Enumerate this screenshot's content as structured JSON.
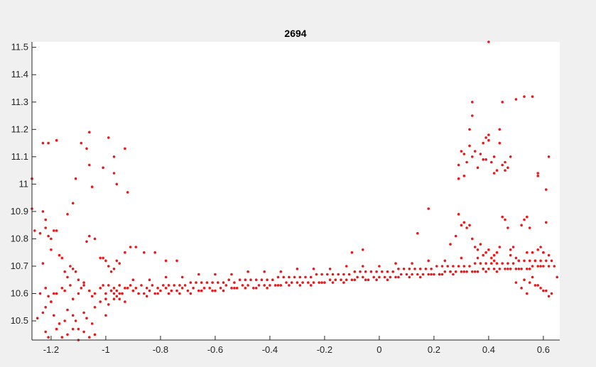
{
  "chart_data": {
    "type": "scatter",
    "title": "2694",
    "xlabel": "",
    "ylabel": "",
    "xlim": [
      -1.27,
      0.66
    ],
    "ylim": [
      10.43,
      11.52
    ],
    "grid": false,
    "legend": false,
    "marker_color": "#e8191b",
    "x_ticks": [
      {
        "value": -1.2,
        "label": "-1.2"
      },
      {
        "value": -1,
        "label": "-1"
      },
      {
        "value": -0.8,
        "label": "-0.8"
      },
      {
        "value": -0.6,
        "label": "-0.6"
      },
      {
        "value": -0.4,
        "label": "-0.4"
      },
      {
        "value": -0.2,
        "label": "-0.2"
      },
      {
        "value": 0,
        "label": "0"
      },
      {
        "value": 0.2,
        "label": "0.2"
      },
      {
        "value": 0.4,
        "label": "0.4"
      },
      {
        "value": 0.6,
        "label": "0.6"
      }
    ],
    "y_ticks": [
      {
        "value": 10.5,
        "label": "10.5"
      },
      {
        "value": 10.6,
        "label": "10.6"
      },
      {
        "value": 10.7,
        "label": "10.7"
      },
      {
        "value": 10.8,
        "label": "10.8"
      },
      {
        "value": 10.9,
        "label": "10.9"
      },
      {
        "value": 11,
        "label": "11"
      },
      {
        "value": 11.1,
        "label": "11.1"
      },
      {
        "value": 11.2,
        "label": "11.2"
      },
      {
        "value": 11.3,
        "label": "11.3"
      },
      {
        "value": 11.4,
        "label": "11.4"
      },
      {
        "value": 11.5,
        "label": "11.5"
      }
    ],
    "series": [
      {
        "x": [
          -1.27,
          -1.27,
          -1.23,
          -1.23,
          -1.22,
          -1.21,
          -1.19,
          -1.18,
          -1.14,
          -1.12,
          -1.11,
          -1.09,
          -1.07,
          -1.06,
          -1.06,
          -1.05,
          -1.01,
          -0.99,
          -0.97,
          -0.97,
          -0.96,
          -0.93,
          -0.92,
          -1.26,
          -1.24,
          -1.23,
          -1.22,
          -1.21,
          -1.2,
          -1.2,
          -1.18,
          -1.17,
          -1.16,
          -1.15,
          -1.14,
          -1.13,
          -1.12,
          -1.11,
          -1.1,
          -1.08,
          -1.07,
          -1.06,
          -1.04,
          -1.02,
          -1.01,
          -1.0,
          -0.99,
          -0.98,
          -0.97,
          -0.96,
          -0.95,
          -0.93,
          -0.91,
          -0.89,
          -0.86,
          -0.82,
          -0.78,
          -0.74,
          -1.24,
          -1.22,
          -1.21,
          -1.2,
          -1.19,
          -1.18,
          -1.16,
          -1.15,
          -1.13,
          -1.12,
          -1.1,
          -1.09,
          -1.08,
          -1.06,
          -1.05,
          -1.04,
          -1.02,
          -1.01,
          -1.0,
          -0.98,
          -0.97,
          -0.96,
          -0.95,
          -0.94,
          -1.25,
          -1.23,
          -1.22,
          -1.2,
          -1.19,
          -1.17,
          -1.15,
          -1.14,
          -1.12,
          -1.11,
          -1.1,
          -1.08,
          -1.07,
          -1.05,
          -1.04,
          -1.02,
          -1.0,
          -0.99,
          -0.97,
          -0.95,
          -0.93,
          -1.22,
          -1.21,
          -1.18,
          -1.16,
          -1.14,
          -1.12,
          -1.1,
          -1.08,
          -1.06,
          -1.04,
          -1.0,
          -0.98,
          -0.96,
          -0.94,
          -0.92,
          -0.9,
          -0.88,
          -0.86,
          -0.84,
          -0.82,
          -0.8,
          -0.78,
          -0.76,
          -0.74,
          -0.72,
          -0.7,
          -0.68,
          -0.66,
          -0.64,
          -0.62,
          -0.6,
          -0.58,
          -0.56,
          -0.54,
          -0.52,
          -0.5,
          -0.48,
          -0.46,
          -0.44,
          -0.42,
          -0.4,
          -0.38,
          -0.36,
          -0.34,
          -0.32,
          -0.3,
          -0.28,
          -0.26,
          -0.24,
          -0.22,
          -0.2,
          -0.18,
          -0.16,
          -0.14,
          -0.12,
          -0.1,
          -0.08,
          -0.06,
          -0.04,
          -0.02,
          0.0,
          0.02,
          0.04,
          0.06,
          0.08,
          0.1,
          0.12,
          0.14,
          0.16,
          0.18,
          0.2,
          0.22,
          0.24,
          0.26,
          0.28,
          0.3,
          0.32,
          0.34,
          0.36,
          0.38,
          0.4,
          0.42,
          0.44,
          0.46,
          0.48,
          0.5,
          0.52,
          0.54,
          0.56,
          0.58,
          0.6,
          0.62,
          0.64,
          -0.99,
          -0.97,
          -0.95,
          -0.93,
          -0.91,
          -0.89,
          -0.87,
          -0.85,
          -0.83,
          -0.81,
          -0.79,
          -0.77,
          -0.75,
          -0.73,
          -0.71,
          -0.69,
          -0.67,
          -0.65,
          -0.63,
          -0.61,
          -0.59,
          -0.57,
          -0.55,
          -0.53,
          -0.51,
          -0.49,
          -0.47,
          -0.45,
          -0.43,
          -0.41,
          -0.39,
          -0.37,
          -0.35,
          -0.33,
          -0.31,
          -0.29,
          -0.27,
          -0.25,
          -0.23,
          -0.21,
          -0.19,
          -0.17,
          -0.15,
          -0.13,
          -0.11,
          -0.09,
          -0.07,
          -0.05,
          -0.03,
          -0.01,
          0.01,
          0.03,
          0.05,
          0.07,
          0.09,
          0.11,
          0.13,
          0.15,
          0.17,
          0.19,
          0.21,
          0.23,
          0.25,
          0.27,
          0.29,
          0.31,
          0.33,
          0.35,
          0.37,
          0.39,
          0.41,
          0.43,
          0.45,
          0.47,
          0.49,
          0.51,
          0.53,
          0.55,
          0.57,
          0.59,
          0.61,
          0.63,
          -0.85,
          -0.81,
          -0.77,
          -0.73,
          -0.69,
          -0.65,
          -0.61,
          -0.57,
          -0.53,
          -0.49,
          -0.45,
          -0.41,
          -0.37,
          -0.33,
          -0.29,
          -0.25,
          -0.21,
          -0.17,
          -0.13,
          -0.09,
          -0.05,
          -0.01,
          0.03,
          0.07,
          0.11,
          0.15,
          0.19,
          0.23,
          0.27,
          0.31,
          0.35,
          0.39,
          0.43,
          0.47,
          0.51,
          0.55,
          0.59,
          -0.9,
          -0.84,
          -0.78,
          -0.72,
          -0.66,
          -0.6,
          -0.54,
          -0.48,
          -0.42,
          -0.36,
          -0.3,
          -0.24,
          -0.18,
          -0.12,
          -0.06,
          0.0,
          0.06,
          0.12,
          0.18,
          0.24,
          0.3,
          0.36,
          0.42,
          0.48,
          0.54,
          0.6,
          -0.06,
          -0.1,
          0.14,
          0.18,
          0.26,
          0.28,
          0.29,
          0.3,
          0.31,
          0.32,
          0.33,
          0.34,
          0.35,
          0.36,
          0.37,
          0.38,
          0.39,
          0.4,
          0.41,
          0.42,
          0.43,
          0.44,
          0.45,
          0.46,
          0.47,
          0.48,
          0.49,
          0.5,
          0.51,
          0.52,
          0.53,
          0.54,
          0.55,
          0.56,
          0.57,
          0.58,
          0.59,
          0.6,
          0.61,
          0.62,
          0.29,
          0.3,
          0.31,
          0.32,
          0.33,
          0.34,
          0.35,
          0.36,
          0.37,
          0.38,
          0.39,
          0.4,
          0.41,
          0.42,
          0.43,
          0.44,
          0.45,
          0.46,
          0.47,
          0.48,
          0.29,
          0.31,
          0.33,
          0.34,
          0.34,
          0.38,
          0.39,
          0.4,
          0.42,
          0.44,
          0.45,
          0.46,
          0.5,
          0.53,
          0.56,
          0.58,
          0.58,
          0.61,
          0.62,
          0.5,
          0.52,
          0.54,
          0.56,
          0.58,
          0.6,
          0.62,
          0.53,
          0.55,
          0.57,
          0.59,
          0.61,
          0.63,
          0.65,
          0.4,
          0.22,
          0.26,
          0.38
        ],
        "y": [
          11.02,
          10.91,
          11.15,
          10.9,
          10.87,
          11.15,
          10.83,
          11.16,
          10.89,
          10.93,
          11.02,
          11.15,
          11.13,
          11.19,
          11.07,
          10.99,
          11.06,
          11.17,
          11.1,
          11.04,
          11.0,
          11.13,
          10.97,
          10.83,
          10.82,
          10.71,
          10.84,
          10.81,
          10.8,
          10.76,
          10.83,
          10.74,
          10.73,
          10.68,
          10.66,
          10.7,
          10.69,
          10.68,
          10.65,
          10.64,
          10.79,
          10.81,
          10.8,
          10.73,
          10.73,
          10.72,
          10.7,
          10.68,
          10.69,
          10.72,
          10.71,
          10.75,
          10.77,
          10.77,
          10.75,
          10.75,
          10.72,
          10.72,
          10.6,
          10.62,
          10.59,
          10.57,
          10.6,
          10.6,
          10.62,
          10.61,
          10.63,
          10.58,
          10.6,
          10.62,
          10.63,
          10.61,
          10.59,
          10.6,
          10.62,
          10.63,
          10.58,
          10.61,
          10.6,
          10.59,
          10.58,
          10.6,
          10.51,
          10.53,
          10.55,
          10.57,
          10.52,
          10.49,
          10.5,
          10.54,
          10.52,
          10.5,
          10.47,
          10.53,
          10.51,
          10.49,
          10.55,
          10.57,
          10.52,
          10.56,
          10.58,
          10.6,
          10.57,
          10.46,
          10.44,
          10.47,
          10.44,
          10.45,
          10.47,
          10.43,
          10.46,
          10.44,
          10.45,
          10.6,
          10.61,
          10.61,
          10.6,
          10.62,
          10.61,
          10.6,
          10.6,
          10.61,
          10.6,
          10.61,
          10.62,
          10.61,
          10.61,
          10.62,
          10.61,
          10.62,
          10.61,
          10.62,
          10.62,
          10.61,
          10.62,
          10.63,
          10.62,
          10.62,
          10.63,
          10.63,
          10.62,
          10.63,
          10.63,
          10.63,
          10.63,
          10.63,
          10.64,
          10.64,
          10.64,
          10.64,
          10.64,
          10.64,
          10.64,
          10.64,
          10.65,
          10.65,
          10.65,
          10.65,
          10.65,
          10.66,
          10.66,
          10.65,
          10.66,
          10.66,
          10.66,
          10.66,
          10.66,
          10.67,
          10.67,
          10.67,
          10.67,
          10.67,
          10.67,
          10.67,
          10.67,
          10.68,
          10.68,
          10.68,
          10.68,
          10.68,
          10.68,
          10.68,
          10.69,
          10.69,
          10.69,
          10.69,
          10.69,
          10.69,
          10.69,
          10.69,
          10.69,
          10.7,
          10.7,
          10.7,
          10.7,
          10.7,
          10.63,
          10.62,
          10.63,
          10.62,
          10.63,
          10.62,
          10.63,
          10.62,
          10.63,
          10.62,
          10.63,
          10.63,
          10.63,
          10.63,
          10.63,
          10.64,
          10.64,
          10.64,
          10.64,
          10.64,
          10.64,
          10.64,
          10.65,
          10.64,
          10.65,
          10.65,
          10.65,
          10.65,
          10.65,
          10.65,
          10.65,
          10.66,
          10.66,
          10.66,
          10.66,
          10.66,
          10.66,
          10.66,
          10.67,
          10.67,
          10.67,
          10.67,
          10.67,
          10.67,
          10.67,
          10.68,
          10.68,
          10.68,
          10.68,
          10.68,
          10.68,
          10.68,
          10.68,
          10.69,
          10.69,
          10.69,
          10.69,
          10.69,
          10.69,
          10.69,
          10.7,
          10.7,
          10.7,
          10.7,
          10.7,
          10.7,
          10.7,
          10.71,
          10.71,
          10.71,
          10.71,
          10.71,
          10.71,
          10.71,
          10.71,
          10.72,
          10.72,
          10.72,
          10.72,
          10.72,
          10.72,
          10.72,
          10.59,
          10.6,
          10.6,
          10.6,
          10.6,
          10.61,
          10.61,
          10.61,
          10.62,
          10.62,
          10.62,
          10.62,
          10.63,
          10.63,
          10.63,
          10.63,
          10.64,
          10.64,
          10.64,
          10.65,
          10.65,
          10.65,
          10.65,
          10.66,
          10.66,
          10.66,
          10.67,
          10.67,
          10.67,
          10.68,
          10.68,
          10.68,
          10.68,
          10.69,
          10.69,
          10.69,
          10.7,
          10.65,
          10.65,
          10.66,
          10.66,
          10.67,
          10.67,
          10.67,
          10.68,
          10.68,
          10.68,
          10.69,
          10.69,
          10.69,
          10.7,
          10.7,
          10.7,
          10.71,
          10.71,
          10.72,
          10.72,
          10.73,
          10.73,
          10.74,
          10.74,
          10.75,
          10.75,
          10.76,
          10.75,
          10.82,
          10.91,
          10.78,
          10.81,
          10.89,
          10.85,
          10.86,
          10.84,
          10.85,
          10.8,
          10.77,
          10.76,
          10.78,
          10.74,
          10.75,
          10.76,
          10.73,
          10.72,
          10.75,
          10.77,
          10.88,
          10.87,
          10.84,
          10.76,
          10.77,
          10.73,
          10.72,
          10.85,
          10.87,
          10.88,
          10.84,
          10.75,
          10.72,
          10.76,
          10.77,
          10.75,
          10.86,
          10.74,
          11.07,
          11.12,
          11.11,
          11.08,
          11.14,
          11.1,
          11.12,
          11.06,
          11.11,
          11.09,
          11.09,
          11.16,
          11.08,
          11.1,
          11.05,
          11.15,
          11.07,
          11.08,
          11.06,
          11.1,
          11.02,
          11.03,
          11.2,
          11.25,
          11.3,
          11.15,
          11.17,
          11.18,
          11.04,
          11.2,
          11.3,
          11.05,
          11.31,
          11.32,
          11.32,
          11.04,
          11.03,
          10.98,
          11.1,
          10.64,
          10.62,
          10.6,
          10.66,
          10.63,
          10.61,
          10.59,
          10.65,
          10.64,
          10.63,
          10.62,
          10.61,
          10.6,
          10.66,
          11.52,
          10.67,
          10.68,
          10.69
        ]
      }
    ]
  }
}
